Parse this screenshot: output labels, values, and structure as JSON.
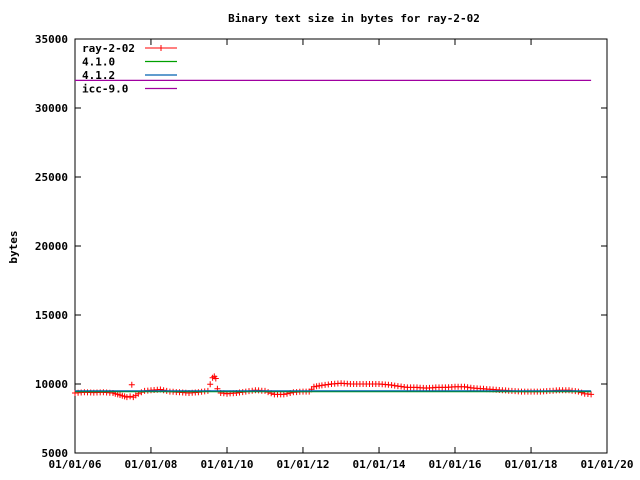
{
  "chart_data": {
    "type": "line",
    "title": "Binary text size in bytes for ray-2-02",
    "xlabel": "",
    "ylabel": "bytes",
    "xlim": [
      "2006-01-01",
      "2020-01-01"
    ],
    "ylim": [
      5000,
      35000
    ],
    "x_ticks": [
      "01/01/06",
      "01/01/08",
      "01/01/10",
      "01/01/12",
      "01/01/14",
      "01/01/16",
      "01/01/18",
      "01/01/20"
    ],
    "y_ticks": [
      "5000",
      "10000",
      "15000",
      "20000",
      "25000",
      "30000",
      "35000"
    ],
    "grid": false,
    "legend_position": "top-left",
    "series": [
      {
        "name": "ray-2-02",
        "style": "points",
        "color": "#ff0000",
        "points": [
          [
            "2006-01-01",
            9350
          ],
          [
            "2006-04-01",
            9400
          ],
          [
            "2006-07-01",
            9380
          ],
          [
            "2006-10-01",
            9400
          ],
          [
            "2007-01-01",
            9350
          ],
          [
            "2007-02-15",
            9250
          ],
          [
            "2007-04-01",
            9150
          ],
          [
            "2007-05-15",
            9050
          ],
          [
            "2007-06-15",
            9100
          ],
          [
            "2007-07-01",
            9950
          ],
          [
            "2007-07-15",
            9050
          ],
          [
            "2007-09-01",
            9300
          ],
          [
            "2007-11-01",
            9500
          ],
          [
            "2008-01-01",
            9550
          ],
          [
            "2008-04-01",
            9600
          ],
          [
            "2008-07-01",
            9450
          ],
          [
            "2008-10-01",
            9400
          ],
          [
            "2009-01-01",
            9350
          ],
          [
            "2009-04-01",
            9400
          ],
          [
            "2009-07-01",
            9500
          ],
          [
            "2009-08-15",
            10450
          ],
          [
            "2009-09-01",
            10550
          ],
          [
            "2009-09-15",
            10400
          ],
          [
            "2009-10-01",
            9650
          ],
          [
            "2009-11-01",
            9350
          ],
          [
            "2010-01-01",
            9300
          ],
          [
            "2010-04-01",
            9350
          ],
          [
            "2010-07-01",
            9450
          ],
          [
            "2010-10-01",
            9550
          ],
          [
            "2011-01-01",
            9500
          ],
          [
            "2011-04-01",
            9250
          ],
          [
            "2011-07-01",
            9250
          ],
          [
            "2011-10-01",
            9400
          ],
          [
            "2012-01-01",
            9450
          ],
          [
            "2012-03-01",
            9450
          ],
          [
            "2012-04-15",
            9800
          ],
          [
            "2012-07-01",
            9900
          ],
          [
            "2012-10-01",
            10000
          ],
          [
            "2013-01-01",
            10050
          ],
          [
            "2013-04-01",
            10000
          ],
          [
            "2013-07-01",
            10000
          ],
          [
            "2013-10-01",
            10000
          ],
          [
            "2014-01-01",
            10000
          ],
          [
            "2014-04-01",
            9950
          ],
          [
            "2014-07-01",
            9850
          ],
          [
            "2014-10-01",
            9750
          ],
          [
            "2015-01-01",
            9750
          ],
          [
            "2015-04-01",
            9700
          ],
          [
            "2015-07-01",
            9750
          ],
          [
            "2015-10-01",
            9750
          ],
          [
            "2016-01-01",
            9800
          ],
          [
            "2016-04-01",
            9800
          ],
          [
            "2016-07-01",
            9700
          ],
          [
            "2016-10-01",
            9650
          ],
          [
            "2017-01-01",
            9600
          ],
          [
            "2017-04-01",
            9550
          ],
          [
            "2017-07-01",
            9500
          ],
          [
            "2017-10-01",
            9450
          ],
          [
            "2018-01-01",
            9450
          ],
          [
            "2018-04-01",
            9450
          ],
          [
            "2018-07-01",
            9500
          ],
          [
            "2018-10-01",
            9550
          ],
          [
            "2019-01-01",
            9550
          ],
          [
            "2019-04-01",
            9450
          ],
          [
            "2019-06-01",
            9300
          ],
          [
            "2019-08-01",
            9250
          ]
        ]
      },
      {
        "name": "4.1.0",
        "style": "line",
        "color": "#00a000",
        "points": [
          [
            "2006-01-01",
            9450
          ],
          [
            "2019-08-01",
            9450
          ]
        ]
      },
      {
        "name": "4.1.2",
        "style": "line",
        "color": "#0060b0",
        "points": [
          [
            "2006-01-01",
            9500
          ],
          [
            "2019-08-01",
            9500
          ]
        ]
      },
      {
        "name": "icc-9.0",
        "style": "line",
        "color": "#a000a0",
        "points": [
          [
            "2006-01-01",
            32000
          ],
          [
            "2019-08-01",
            32000
          ]
        ]
      }
    ]
  }
}
